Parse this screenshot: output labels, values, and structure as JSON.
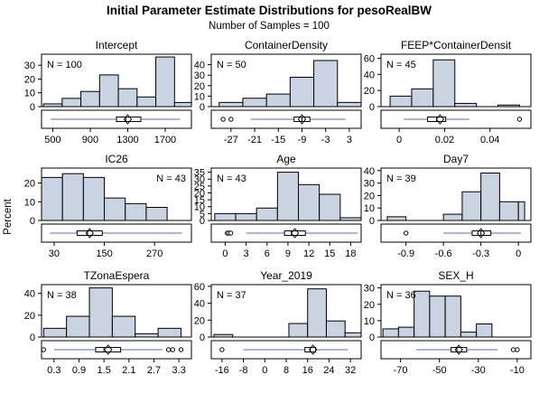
{
  "chart_data": {
    "type": "histogram-panel",
    "title": "Initial Parameter Estimate Distributions for pesoRealBW",
    "subtitle": "Number of Samples = 100",
    "ylabel": "Percent",
    "colors": {
      "bar_fill": "#c9d3e1",
      "bar_stroke": "#000000",
      "box_line": "#5b6fa8",
      "frame": "#000000"
    },
    "panels": [
      {
        "name": "Intercept",
        "n_label": "N = 100",
        "n_pos": "top-left",
        "ylim": [
          0,
          38
        ],
        "yticks": [
          0,
          10,
          20,
          30
        ],
        "xlim": [
          380,
          1980
        ],
        "xticks": [
          500,
          900,
          1300,
          1700
        ],
        "bins": {
          "edges": [
            400,
            600,
            800,
            1000,
            1200,
            1400,
            1600,
            1800,
            2000
          ],
          "values": [
            2,
            6,
            11,
            23,
            13,
            7,
            36,
            3
          ]
        },
        "box": {
          "whisker_low": 480,
          "q1": 1180,
          "median": 1280,
          "mean": 1300,
          "q3": 1440,
          "whisker_high": 1860,
          "outliers": []
        }
      },
      {
        "name": "ContainerDensity",
        "n_label": "N = 50",
        "n_pos": "top-left",
        "ylim": [
          0,
          50
        ],
        "yticks": [
          0,
          10,
          20,
          30,
          40
        ],
        "xlim": [
          -32,
          6
        ],
        "xticks": [
          -27,
          -21,
          -15,
          -9,
          -3,
          3
        ],
        "bins": {
          "edges": [
            -30,
            -24,
            -18,
            -12,
            -6,
            0,
            6
          ],
          "values": [
            4,
            8,
            12,
            28,
            44,
            4
          ]
        },
        "box": {
          "whisker_low": -22,
          "q1": -11,
          "median": -9,
          "mean": -9,
          "q3": -7,
          "whisker_high": 2,
          "outliers": [
            -29,
            -27
          ]
        }
      },
      {
        "name": "FEEP*ContainerDensit",
        "n_label": "N = 45",
        "n_pos": "top-left",
        "ylim": [
          0,
          65
        ],
        "yticks": [
          0,
          20,
          40,
          60
        ],
        "xlim": [
          -0.008,
          0.058
        ],
        "xticks": [
          0,
          0.02,
          0.04
        ],
        "xtick_labels": [
          "0",
          "0.02",
          "0.04"
        ],
        "bins": {
          "edges": [
            -0.004,
            0.0055,
            0.015,
            0.0245,
            0.034,
            0.0435,
            0.053
          ],
          "values": [
            13,
            22,
            58,
            4,
            0,
            2
          ]
        },
        "box": {
          "whisker_low": 0.002,
          "q1": 0.0125,
          "median": 0.0165,
          "mean": 0.018,
          "q3": 0.0205,
          "whisker_high": 0.031,
          "outliers": [
            0.053
          ]
        }
      },
      {
        "name": "IC26",
        "n_label": "N = 43",
        "n_pos": "top-right",
        "ylim": [
          0,
          28
        ],
        "yticks": [
          0,
          10,
          20
        ],
        "xlim": [
          0,
          358
        ],
        "xticks": [
          30,
          150,
          270
        ],
        "bins": {
          "edges": [
            0,
            50,
            100,
            150,
            200,
            250,
            300,
            350
          ],
          "values": [
            23,
            25,
            23,
            12,
            9,
            7,
            0
          ]
        },
        "box": {
          "whisker_low": 20,
          "q1": 85,
          "median": 110,
          "mean": 115,
          "q3": 145,
          "whisker_high": 335,
          "outliers": []
        }
      },
      {
        "name": "Age",
        "n_label": "N = 43",
        "n_pos": "top-left",
        "ylim": [
          0,
          38
        ],
        "yticks": [
          0,
          5,
          10,
          15,
          20,
          25,
          30,
          35
        ],
        "xlim": [
          -2,
          19.5
        ],
        "xticks": [
          0,
          3,
          6,
          9,
          12,
          15,
          18
        ],
        "bins": {
          "edges": [
            -1.5,
            1.5,
            4.5,
            7.5,
            10.5,
            13.5,
            16.5,
            19.5
          ],
          "values": [
            5,
            5,
            9,
            35,
            26,
            19,
            2
          ]
        },
        "box": {
          "whisker_low": 3,
          "q1": 8.5,
          "median": 9.5,
          "mean": 10,
          "q3": 11.5,
          "whisker_high": 19,
          "outliers": [
            0.3,
            0.5,
            0.8
          ]
        }
      },
      {
        "name": "Day7",
        "n_label": "N = 39",
        "n_pos": "top-left",
        "ylim": [
          0,
          42
        ],
        "yticks": [
          0,
          10,
          20,
          30,
          40
        ],
        "xlim": [
          -1.1,
          0.1
        ],
        "xticks": [
          -0.9,
          -0.6,
          -0.3,
          0
        ],
        "xtick_labels": [
          "-0.9",
          "-0.6",
          "-0.3",
          "0"
        ],
        "bins": {
          "edges": [
            -1.05,
            -0.9,
            -0.75,
            -0.6,
            -0.45,
            -0.3,
            -0.15,
            0.0,
            0.05
          ],
          "values": [
            3,
            0,
            0,
            5,
            23,
            38,
            15,
            15
          ]
        },
        "box": {
          "whisker_low": -0.6,
          "q1": -0.37,
          "median": -0.3,
          "mean": -0.3,
          "q3": -0.22,
          "whisker_high": 0.02,
          "outliers": [
            -0.9
          ]
        }
      },
      {
        "name": "TZonaEspera",
        "n_label": "N = 38",
        "n_pos": "top-left",
        "ylim": [
          0,
          48
        ],
        "yticks": [
          0,
          20,
          40
        ],
        "xlim": [
          0,
          3.6
        ],
        "xticks": [
          0.3,
          0.9,
          1.5,
          2.1,
          2.7,
          3.3
        ],
        "bins": {
          "edges": [
            0.05,
            0.6,
            1.15,
            1.7,
            2.25,
            2.8,
            3.35,
            3.6
          ],
          "values": [
            8,
            19,
            45,
            19,
            3,
            8,
            0
          ]
        },
        "box": {
          "whisker_low": 0.3,
          "q1": 1.3,
          "median": 1.5,
          "mean": 1.6,
          "q3": 1.9,
          "whisker_high": 2.9,
          "outliers": [
            0.05,
            3.05,
            3.15,
            3.35
          ]
        }
      },
      {
        "name": "Year_2019",
        "n_label": "N = 37",
        "n_pos": "top-left",
        "ylim": [
          0,
          62
        ],
        "yticks": [
          0,
          20,
          40,
          60
        ],
        "xlim": [
          -20,
          36
        ],
        "xticks": [
          -16,
          -8,
          0,
          8,
          16,
          24,
          32
        ],
        "bins": {
          "edges": [
            -19,
            -12,
            -5,
            2,
            9,
            16,
            23,
            30,
            36
          ],
          "values": [
            3,
            0,
            0,
            0,
            16,
            57,
            19,
            5
          ]
        },
        "box": {
          "whisker_low": -8,
          "q1": 15,
          "median": 17,
          "mean": 18,
          "q3": 19,
          "whisker_high": 31,
          "outliers": [
            -16
          ]
        }
      },
      {
        "name": "SEX_H",
        "n_label": "N = 36",
        "n_pos": "top-left",
        "ylim": [
          0,
          32
        ],
        "yticks": [
          0,
          10,
          20,
          30
        ],
        "xlim": [
          -80,
          -3
        ],
        "xticks": [
          -70,
          -50,
          -30,
          -10
        ],
        "bins": {
          "edges": [
            -79,
            -71,
            -63,
            -55,
            -47,
            -39,
            -31,
            -23,
            -15,
            -7
          ],
          "values": [
            5,
            6,
            28,
            25,
            25,
            3,
            8,
            0,
            0
          ]
        },
        "box": {
          "whisker_low": -62,
          "q1": -44,
          "median": -41,
          "mean": -40,
          "q3": -36,
          "whisker_high": -20,
          "outliers": [
            -12,
            -10
          ]
        }
      }
    ]
  }
}
